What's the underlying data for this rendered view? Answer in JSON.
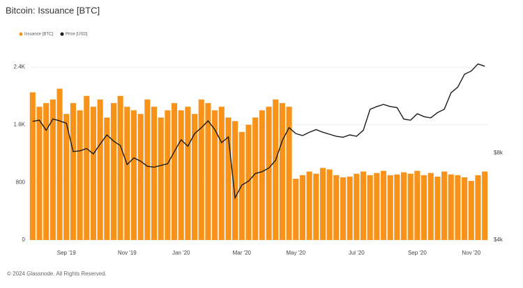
{
  "chart_data": {
    "type": "bar",
    "title": "Bitcoin: Issuance [BTC]",
    "footer": "© 2024 Glassnode. All Rights Reserved.",
    "categories": [
      null,
      null,
      null,
      null,
      null,
      "Sep '19",
      null,
      null,
      null,
      null,
      null,
      null,
      null,
      null,
      "Nov '19",
      null,
      null,
      null,
      null,
      null,
      null,
      null,
      "Jan '20",
      null,
      null,
      null,
      null,
      null,
      null,
      null,
      null,
      "Mar '20",
      null,
      null,
      null,
      null,
      null,
      null,
      null,
      "May '20",
      null,
      null,
      null,
      null,
      null,
      null,
      null,
      null,
      "Jul '20",
      null,
      null,
      null,
      null,
      null,
      null,
      null,
      null,
      "Sep '20",
      null,
      null,
      null,
      null,
      null,
      null,
      null,
      "Nov '20",
      null,
      null
    ],
    "series": [
      {
        "name": "Issuance [BTC]",
        "type": "bar",
        "color": "#f7931a",
        "values": [
          2050,
          1850,
          1900,
          1950,
          2100,
          1750,
          1900,
          1800,
          2000,
          1850,
          1950,
          1700,
          1900,
          2000,
          1850,
          1800,
          1750,
          1950,
          1850,
          1700,
          1800,
          1900,
          1800,
          1850,
          1750,
          1950,
          1900,
          1800,
          1850,
          1700,
          1650,
          1500,
          1600,
          1700,
          1800,
          1850,
          1950,
          1900,
          1850,
          850,
          900,
          950,
          920,
          1000,
          980,
          900,
          870,
          880,
          920,
          950,
          900,
          930,
          960,
          900,
          910,
          940,
          920,
          960,
          900,
          930,
          880,
          950,
          910,
          900,
          870,
          820,
          900,
          950
        ]
      },
      {
        "name": "Price [USD]",
        "type": "line",
        "axis": "y2",
        "color": "#1a1a1a",
        "values": [
          10300,
          10400,
          9600,
          10500,
          10350,
          10150,
          8100,
          8150,
          8300,
          7950,
          8600,
          9250,
          8800,
          8500,
          7300,
          7700,
          7500,
          7200,
          7150,
          7250,
          7350,
          8100,
          8900,
          8450,
          9350,
          9800,
          10350,
          9650,
          8700,
          9100,
          5600,
          6200,
          6400,
          6800,
          6900,
          7100,
          7550,
          8850,
          9800,
          9350,
          9200,
          9450,
          9650,
          9450,
          9300,
          9150,
          9080,
          9250,
          9150,
          9600,
          11350,
          11600,
          11800,
          11600,
          11500,
          10500,
          10400,
          10950,
          10700,
          10600,
          11050,
          11350,
          12950,
          13550,
          15000,
          15400,
          16300,
          16000
        ]
      }
    ],
    "ylim": [
      0,
      2800
    ],
    "yticks": [
      0,
      800,
      {
        "value": 1600,
        "label": "1.6K"
      },
      {
        "value": 2400,
        "label": "2.4K"
      }
    ],
    "y2lim": [
      4000,
      20000
    ],
    "y2scale": "log",
    "y2ticks": [
      {
        "value": 4000,
        "label": "$4k"
      },
      {
        "value": 8000,
        "label": "$8k"
      }
    ],
    "grid": true,
    "legend": "top-left"
  }
}
